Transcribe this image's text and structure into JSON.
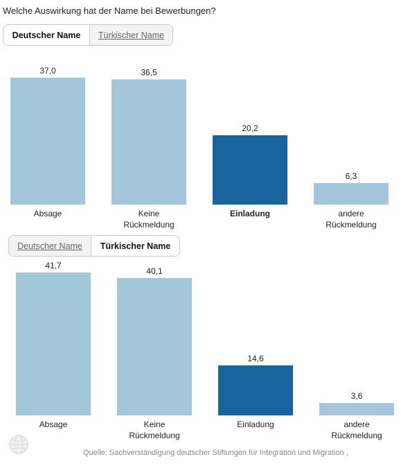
{
  "title": "Welche Auswirkung hat der Name bei Bewerbungen?",
  "tabs_top": [
    "Deutscher Name",
    "Türkischer Name"
  ],
  "tabs_bottom": [
    "Deutscher Name",
    "Türkischer Name"
  ],
  "source": "Quelle: Sachverständigung deutscher Stiftungen für Integration und Migration ,",
  "colors": {
    "light_bar": "#a3c6db",
    "dark_bar": "#17649f"
  },
  "icons": {
    "logo": "globe-icon"
  },
  "chart_data": [
    {
      "type": "bar",
      "categories": [
        [
          "Absage"
        ],
        [
          "Keine",
          "Rückmeldung"
        ],
        [
          "Einladung"
        ],
        [
          "andere",
          "Rückmeldung"
        ]
      ],
      "values": [
        37.0,
        36.5,
        20.2,
        6.3
      ],
      "value_labels": [
        "37,0",
        "36,5",
        "20,2",
        "6,3"
      ],
      "highlight_index": 2,
      "bold_highlight_label": true
    },
    {
      "type": "bar",
      "categories": [
        [
          "Absage"
        ],
        [
          "Keine",
          "Rückmeldung"
        ],
        [
          "Einladung"
        ],
        [
          "andere",
          "Rückmeldung"
        ]
      ],
      "values": [
        41.7,
        40.1,
        14.6,
        3.6
      ],
      "value_labels": [
        "41,7",
        "40,1",
        "14,6",
        "3,6"
      ],
      "highlight_index": 2,
      "bold_highlight_label": false
    }
  ]
}
